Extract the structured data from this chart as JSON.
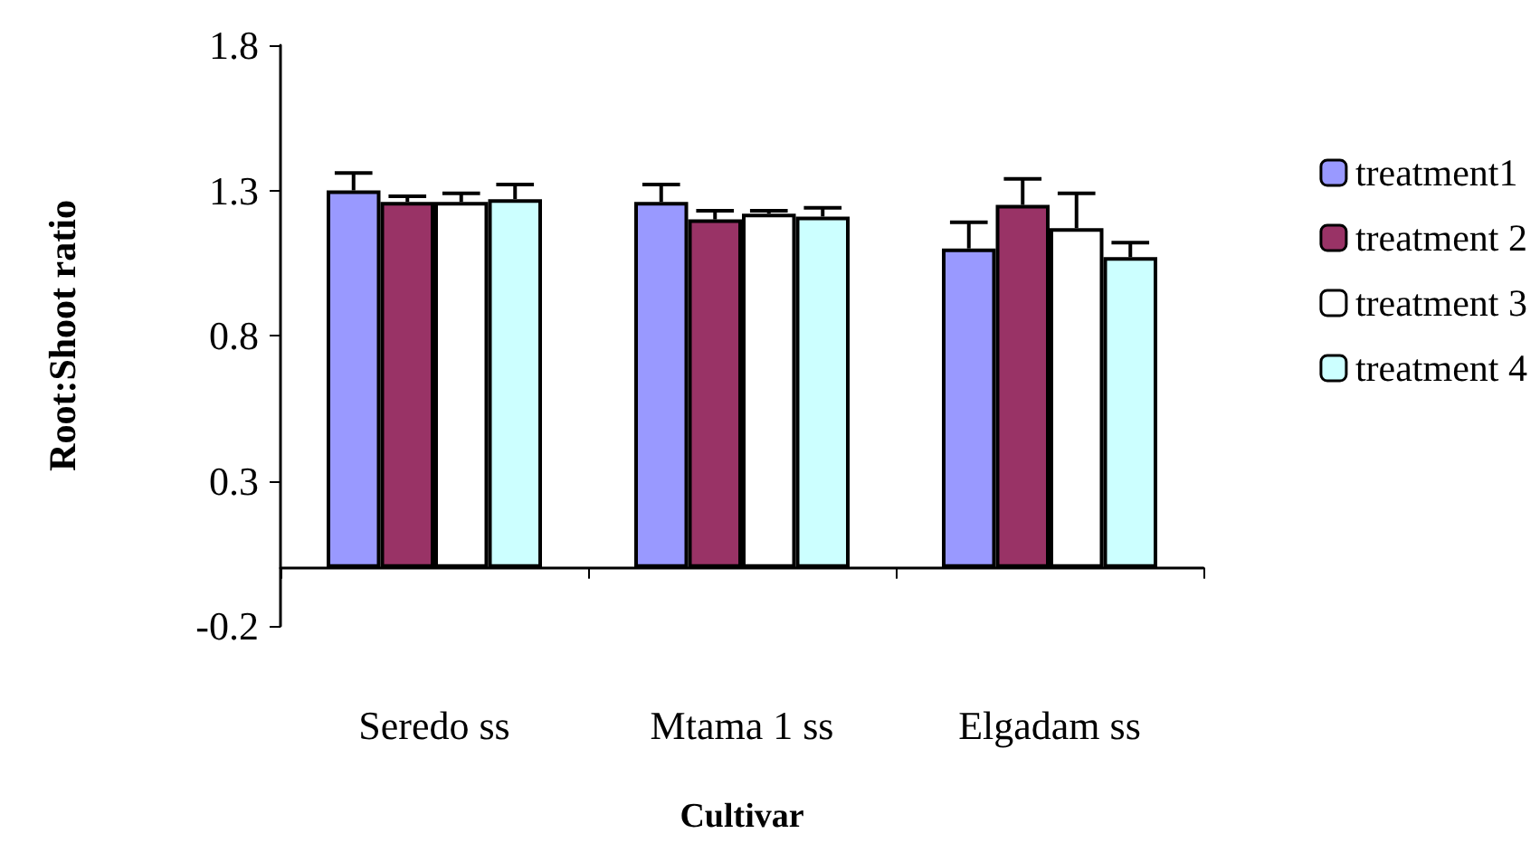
{
  "chart_data": {
    "type": "bar",
    "xlabel": "Cultivar",
    "ylabel": "Root:Shoot ratio",
    "categories": [
      "Seredo ss",
      "Mtama 1 ss",
      "Elgadam ss"
    ],
    "series": [
      {
        "name": "treatment1",
        "color": "#9999ff",
        "values": [
          1.3,
          1.26,
          1.1
        ],
        "errors": [
          [
            1.3,
            1.36
          ],
          [
            1.26,
            1.32
          ],
          [
            1.1,
            1.19
          ]
        ]
      },
      {
        "name": "treatment 2",
        "color": "#993366",
        "values": [
          1.26,
          1.2,
          1.25
        ],
        "errors": [
          [
            1.26,
            1.28
          ],
          [
            1.2,
            1.23
          ],
          [
            1.25,
            1.34
          ]
        ]
      },
      {
        "name": "treatment 3",
        "color": "#ffffff",
        "values": [
          1.26,
          1.22,
          1.17
        ],
        "errors": [
          [
            1.26,
            1.29
          ],
          [
            1.22,
            1.23
          ],
          [
            1.17,
            1.29
          ]
        ]
      },
      {
        "name": "treatment 4",
        "color": "#ccffff",
        "values": [
          1.27,
          1.21,
          1.07
        ],
        "errors": [
          [
            1.27,
            1.32
          ],
          [
            1.21,
            1.24
          ],
          [
            1.07,
            1.12
          ]
        ]
      }
    ],
    "ylim": [
      -0.2,
      1.8
    ],
    "yticks": [
      -0.2,
      0.3,
      0.8,
      1.3,
      1.8
    ],
    "grid": false,
    "legend": "right"
  }
}
